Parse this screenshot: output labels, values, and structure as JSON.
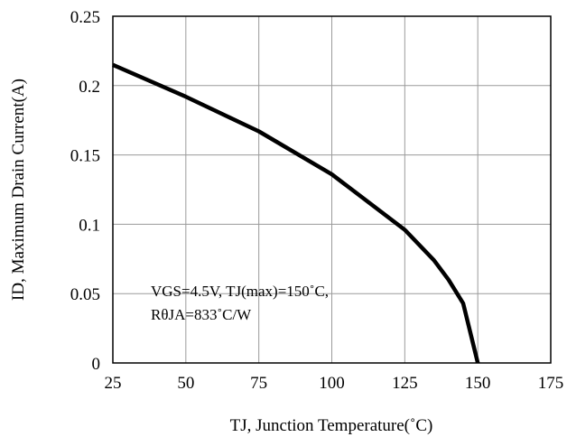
{
  "chart_data": {
    "type": "line",
    "xlabel": "TJ, Junction Temperature(˚C)",
    "ylabel": "ID, Maximum Drain Current(A)",
    "xlim": [
      25,
      175
    ],
    "ylim": [
      0,
      0.25
    ],
    "x_ticks": [
      25,
      50,
      75,
      100,
      125,
      150,
      175
    ],
    "y_ticks": [
      0,
      0.05,
      0.1,
      0.15,
      0.2,
      0.25
    ],
    "x_tick_labels": [
      "25",
      "50",
      "75",
      "100",
      "125",
      "150",
      "175"
    ],
    "y_tick_labels": [
      "0",
      "0.05",
      "0.1",
      "0.15",
      "0.2",
      "0.25"
    ],
    "grid": true,
    "series": [
      {
        "color": "#000000",
        "x": [
          25,
          50,
          75,
          100,
          125,
          135,
          140,
          145,
          150
        ],
        "y": [
          0.215,
          0.192,
          0.167,
          0.136,
          0.096,
          0.074,
          0.06,
          0.043,
          0
        ]
      }
    ],
    "annotation": {
      "line1": "VGS=4.5V, TJ(max)=150˚C,",
      "line2": "RθJA=833˚C/W"
    }
  }
}
